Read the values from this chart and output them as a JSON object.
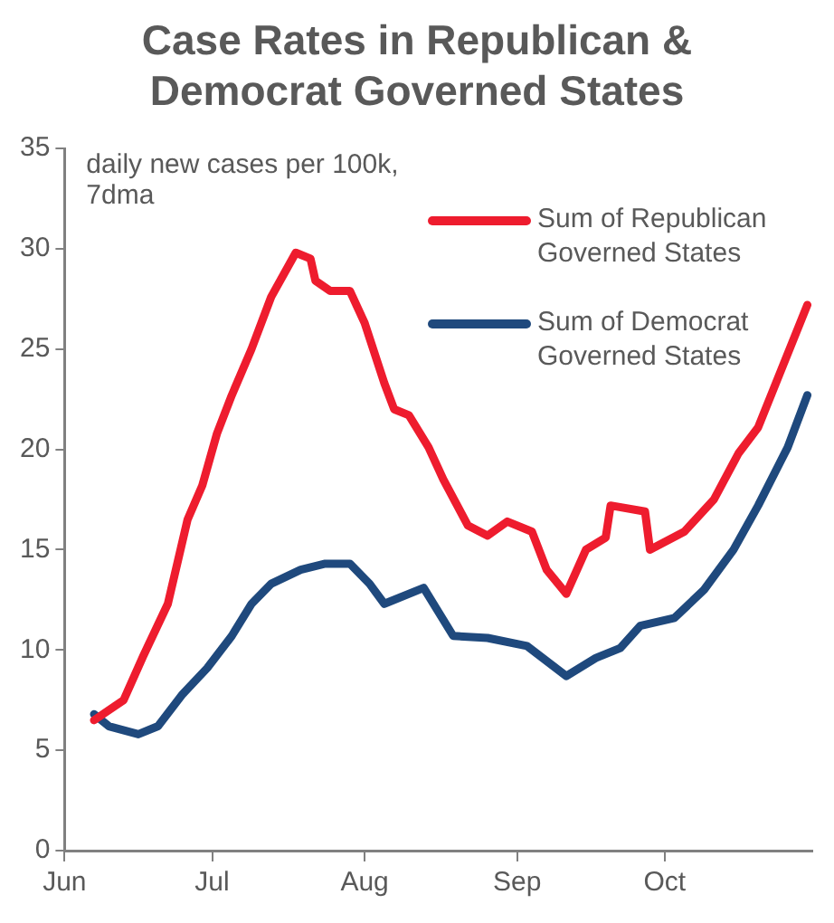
{
  "chart_data": {
    "type": "line",
    "title": "Case Rates in Republican & Democrat Governed States",
    "annotations": [
      "daily new cases per 100k, 7dma"
    ],
    "xlim": [
      "--06-01",
      "--10-31"
    ],
    "xticks": [
      {
        "value": "--06-01",
        "label": "Jun"
      },
      {
        "value": "--07-01",
        "label": "Jul"
      },
      {
        "value": "--08-01",
        "label": "Aug"
      },
      {
        "value": "--09-01",
        "label": "Sep"
      },
      {
        "value": "--10-01",
        "label": "Oct"
      }
    ],
    "ylim": [
      0,
      35
    ],
    "yticks": [
      0,
      5,
      10,
      15,
      20,
      25,
      30,
      35
    ],
    "grid": false,
    "legend": "top right",
    "marker": "none",
    "line_style": "solid",
    "series": [
      {
        "name": "Sum of Republican Governed States",
        "color": "#ee1c2e",
        "x": [
          "--06-07",
          "--06-13",
          "--06-17",
          "--06-22",
          "--06-26",
          "--06-29",
          "--07-02",
          "--07-05",
          "--07-09",
          "--07-13",
          "--07-18",
          "--07-21",
          "--07-22",
          "--07-25",
          "--07-29",
          "--08-01",
          "--08-05",
          "--08-07",
          "--08-10",
          "--08-14",
          "--08-17",
          "--08-22",
          "--08-26",
          "--08-30",
          "--09-04",
          "--09-07",
          "--09-11",
          "--09-15",
          "--09-19",
          "--09-20",
          "--09-27",
          "--09-28",
          "--10-05",
          "--10-11",
          "--10-16",
          "--10-20",
          "--10-30"
        ],
        "values": [
          6.5,
          7.5,
          9.7,
          12.3,
          16.5,
          18.2,
          20.8,
          22.7,
          25,
          27.6,
          29.8,
          29.5,
          28.4,
          27.9,
          27.9,
          26.3,
          23.3,
          22,
          21.7,
          20.1,
          18.5,
          16.2,
          15.7,
          16.4,
          15.9,
          14,
          12.8,
          15,
          15.6,
          17.2,
          16.9,
          15,
          15.9,
          17.5,
          19.8,
          21.1,
          27.2
        ]
      },
      {
        "name": "Sum of Democrat Governed States",
        "color": "#1f497d",
        "x": [
          "--06-07",
          "--06-10",
          "--06-16",
          "--06-20",
          "--06-25",
          "--06-30",
          "--07-05",
          "--07-09",
          "--07-13",
          "--07-19",
          "--07-24",
          "--07-29",
          "--08-02",
          "--08-05",
          "--08-13",
          "--08-19",
          "--08-26",
          "--09-03",
          "--09-11",
          "--09-17",
          "--09-22",
          "--09-26",
          "--10-03",
          "--10-09",
          "--10-15",
          "--10-20",
          "--10-26",
          "--10-30"
        ],
        "values": [
          6.8,
          6.2,
          5.8,
          6.2,
          7.8,
          9.1,
          10.7,
          12.3,
          13.3,
          14,
          14.3,
          14.3,
          13.3,
          12.3,
          13.1,
          10.7,
          10.6,
          10.2,
          8.7,
          9.6,
          10.1,
          11.2,
          11.6,
          13,
          15,
          17.2,
          20.1,
          22.7
        ]
      }
    ]
  }
}
